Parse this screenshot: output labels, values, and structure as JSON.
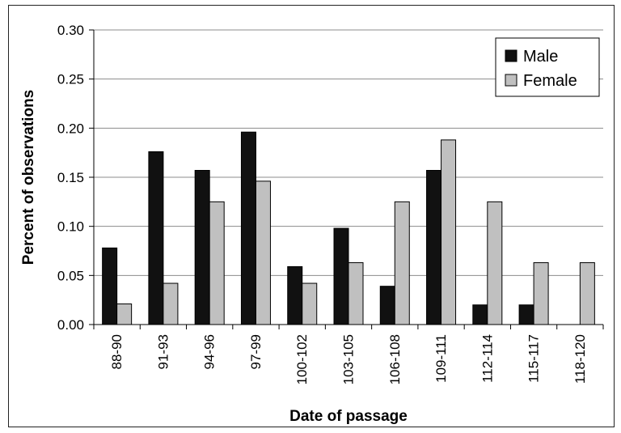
{
  "chart_data": {
    "type": "bar",
    "categories": [
      "88-90",
      "91-93",
      "94-96",
      "97-99",
      "100-102",
      "103-105",
      "106-108",
      "109-111",
      "112-114",
      "115-117",
      "118-120"
    ],
    "series": [
      {
        "name": "Male",
        "values": [
          0.078,
          0.176,
          0.157,
          0.196,
          0.059,
          0.098,
          0.039,
          0.157,
          0.02,
          0.02,
          0.0
        ],
        "color": "#111111"
      },
      {
        "name": "Female",
        "values": [
          0.021,
          0.042,
          0.125,
          0.146,
          0.042,
          0.063,
          0.125,
          0.188,
          0.125,
          0.063,
          0.063
        ],
        "color": "#c0c0c0"
      }
    ],
    "ylim": [
      0,
      0.3
    ],
    "yticks": [
      "0.00",
      "0.05",
      "0.10",
      "0.15",
      "0.20",
      "0.25",
      "0.30"
    ],
    "xlabel": "Date of passage",
    "ylabel": "Percent of observations",
    "grid": true,
    "legend_position": "top-right"
  }
}
